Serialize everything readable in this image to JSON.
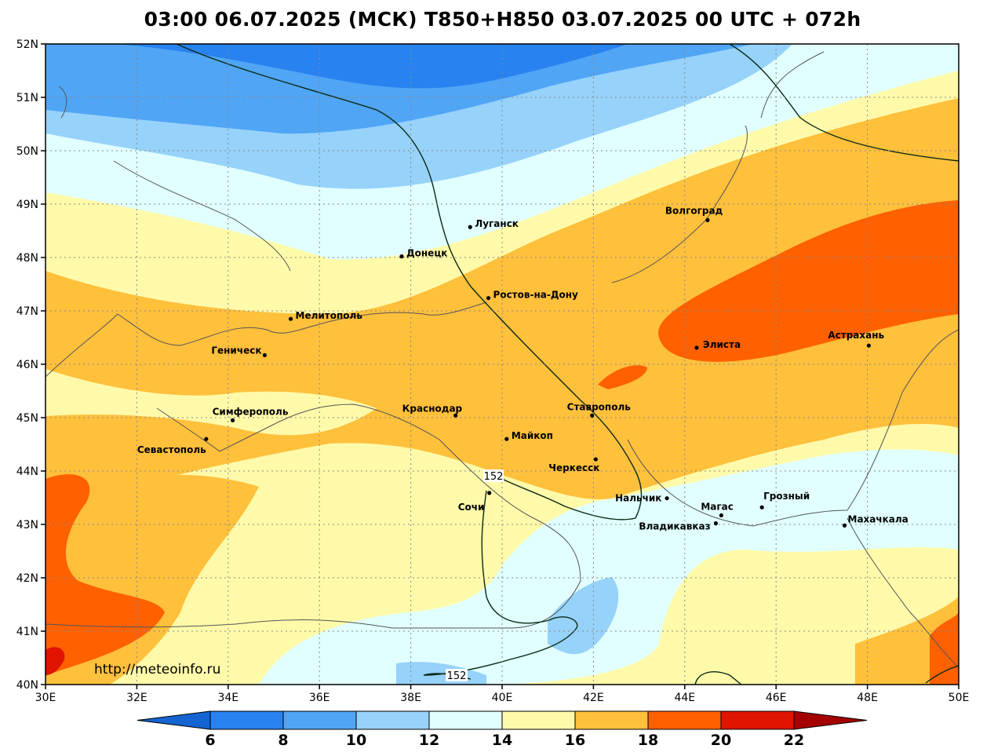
{
  "title": "03:00 06.07.2025 (МСК) T850+H850 03.07.2025 00 UTC + 072h",
  "credit": "http://meteoinfo.ru",
  "lon_ticks": [
    "30E",
    "32E",
    "34E",
    "36E",
    "38E",
    "40E",
    "42E",
    "44E",
    "46E",
    "48E",
    "50E"
  ],
  "lat_ticks": [
    "52N",
    "51N",
    "50N",
    "49N",
    "48N",
    "47N",
    "46N",
    "45N",
    "44N",
    "43N",
    "42N",
    "41N",
    "40N"
  ],
  "colorbar": {
    "labels": [
      "6",
      "8",
      "10",
      "12",
      "14",
      "16",
      "18",
      "20",
      "22"
    ],
    "colors": [
      "#1464d2",
      "#2882f0",
      "#50a5f5",
      "#96d2fa",
      "#e1ffff",
      "#fffaaa",
      "#ffc03c",
      "#ff6000",
      "#e11400",
      "#a50000"
    ]
  },
  "contour_labels": [
    "152",
    "152"
  ],
  "cities": [
    {
      "name": "Луганск",
      "lon": 39.3,
      "lat": 48.57
    },
    {
      "name": "Волгоград",
      "lon": 44.5,
      "lat": 48.7
    },
    {
      "name": "Донецк",
      "lon": 37.8,
      "lat": 48.02
    },
    {
      "name": "Ростов-на-Дону",
      "lon": 39.7,
      "lat": 47.24
    },
    {
      "name": "Мелитополь",
      "lon": 35.37,
      "lat": 46.85
    },
    {
      "name": "Элиста",
      "lon": 44.26,
      "lat": 46.31
    },
    {
      "name": "Астрахань",
      "lon": 48.03,
      "lat": 46.35
    },
    {
      "name": "Геническ",
      "lon": 34.8,
      "lat": 46.17
    },
    {
      "name": "Симферополь",
      "lon": 34.1,
      "lat": 44.95
    },
    {
      "name": "Краснодар",
      "lon": 38.98,
      "lat": 45.04
    },
    {
      "name": "Ставрополь",
      "lon": 41.97,
      "lat": 45.04
    },
    {
      "name": "Майкоп",
      "lon": 40.1,
      "lat": 44.6
    },
    {
      "name": "Севастополь",
      "lon": 33.52,
      "lat": 44.6
    },
    {
      "name": "Черкесск",
      "lon": 42.05,
      "lat": 44.22
    },
    {
      "name": "Сочи",
      "lon": 39.72,
      "lat": 43.59
    },
    {
      "name": "Нальчик",
      "lon": 43.61,
      "lat": 43.49
    },
    {
      "name": "Магас",
      "lon": 44.8,
      "lat": 43.17
    },
    {
      "name": "Грозный",
      "lon": 45.69,
      "lat": 43.32
    },
    {
      "name": "Владикавказ",
      "lon": 44.68,
      "lat": 43.02
    },
    {
      "name": "Махачкала",
      "lon": 47.5,
      "lat": 42.98
    }
  ]
}
